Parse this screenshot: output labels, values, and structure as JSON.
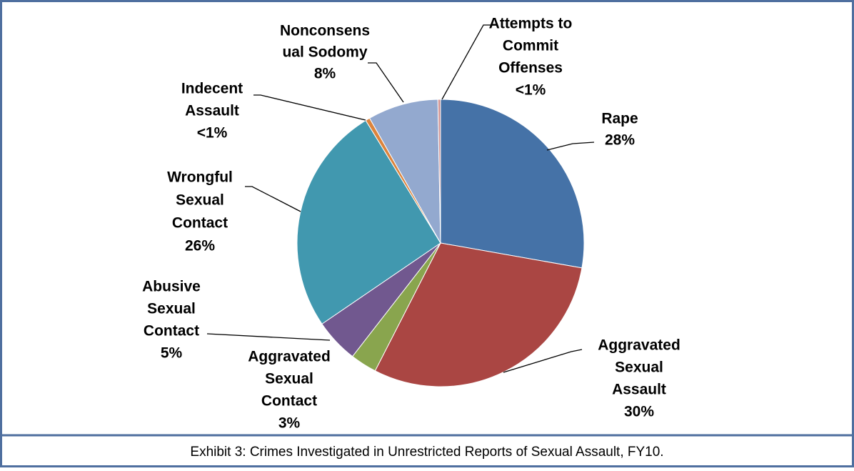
{
  "chart_data": {
    "type": "pie",
    "caption": "Exhibit 3: Crimes Investigated in Unrestricted Reports of Sexual Assault, FY10.",
    "categories": [
      [
        "Rape"
      ],
      [
        "Aggravated",
        "Sexual",
        "Assault"
      ],
      [
        "Aggravated",
        "Sexual",
        "Contact"
      ],
      [
        "Abusive",
        "Sexual",
        "Contact"
      ],
      [
        "Wrongful",
        "Sexual",
        "Contact"
      ],
      [
        "Indecent",
        "Assault"
      ],
      [
        "Nonconsens",
        "ual Sodomy"
      ],
      [
        "Attempts to",
        "Commit",
        "Offenses"
      ]
    ],
    "values": [
      28,
      30,
      3,
      5,
      26,
      0.5,
      8,
      0.3
    ],
    "value_labels": [
      "28%",
      "30%",
      "3%",
      "5%",
      "26%",
      "<1%",
      "8%",
      "<1%"
    ],
    "colors": [
      "#4572a7",
      "#aa4643",
      "#89a54e",
      "#71588f",
      "#4198af",
      "#db843d",
      "#93a9cf",
      "#d19392"
    ]
  }
}
